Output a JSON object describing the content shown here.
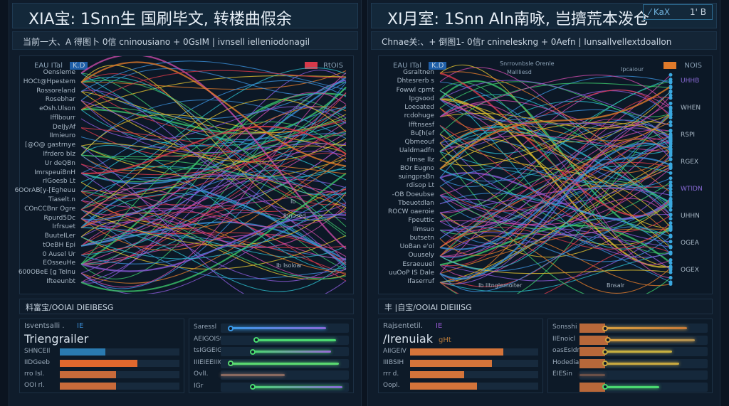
{
  "colors": {
    "curves": [
      "#3a8fd8",
      "#d8394a",
      "#3bc46a",
      "#e0c030",
      "#e07a2a",
      "#8a5ad8",
      "#2ab8c8",
      "#c84aa8"
    ]
  },
  "panels": [
    {
      "title": "XIA宝: 1Snn生 国刷毕文, 转楼曲假余",
      "subtitle": "当前一大、A 得图卜   0信 cninousiano + 0GsIM  | ivnsell ielleniodonagil",
      "chart": {
        "legend_left": "EAU ITal",
        "legend_tag": "K.D",
        "legend_right": "RtOIS",
        "labels": [
          "Oensleme",
          "HOCt@Hpestem",
          "Rossoreland",
          "Rosebhar",
          "eOsh.Ulson",
          "Ifflbourr",
          "DeIJyAf",
          "IImieuro",
          "[@O@ gastrnye",
          "Ifrdero bIz",
          "Ur deQBn",
          "ImrspeuiBnH",
          "rIGoesb Lt",
          "6OOrAB[y-[Egheuu",
          "Tiaselt.n",
          "COnCCBnr Ogre",
          "Rpurd5Dc",
          "Irfrsuet",
          "BuuteILer",
          "tOeBH Epi",
          "0 Ausel Ur",
          "EOsseuHe",
          "600OBeE [g TeInu",
          "Ifteeunbt"
        ],
        "annotations": [
          "Ib",
          "Ibnused",
          "Ib Isoloar"
        ]
      },
      "section": "料富宝/OOIAI DIEIBESG",
      "left_box": {
        "label": "Isventsalli .",
        "tag": "IE",
        "big": "Triengrailer",
        "rows": [
          {
            "label": "SHNCEIl",
            "value": 0.38,
            "color": "#2a7ab0"
          },
          {
            "label": "IIDGeeb",
            "value": 0.65,
            "color": "#e0682e"
          },
          {
            "label": "rro IsI.",
            "value": 0.47,
            "color": "#c86a3a"
          },
          {
            "label": "OOI rl.",
            "value": 0.47,
            "color": "#c86a3a"
          }
        ]
      },
      "right_box": {
        "rows": [
          {
            "label": "Saressl",
            "start": 0.08,
            "end": 0.82,
            "color": "#3a9ae8",
            "color2": "#8a6ad8"
          },
          {
            "label": "AEIGOISt",
            "start": 0.28,
            "end": 0.9,
            "color": "#4ad870",
            "color2": "#4ad870"
          },
          {
            "label": "tsIGGEIG",
            "start": 0.25,
            "end": 0.86,
            "color": "#4ad870",
            "color2": "#9a6ad8"
          },
          {
            "label": "IIIEIEEIIIG",
            "start": 0.08,
            "end": 0.92,
            "color": "#5ad870",
            "color2": "#5ad870"
          },
          {
            "label": "OvlI.",
            "start": 0.0,
            "end": 0.5,
            "color": "#8a6a60",
            "color2": "#8a6a60"
          },
          {
            "label": "IGr",
            "start": 0.25,
            "end": 0.95,
            "color": "#4ad870",
            "color2": "#8a6ad8"
          }
        ]
      }
    },
    {
      "title": "XI月室: 1Snn Aln南咏, 岂擠荒本泼仓",
      "badge": {
        "left": "⁄ KaX",
        "right": "1' B"
      },
      "subtitle": "Chnae关:、+ 倒图1-   0信r cnineleskng + 0Aefn  | Iunsallvellextdoallon",
      "chart": {
        "legend_left": "EAU ITal",
        "legend_tag": "K.D",
        "legend_right": "NOIS",
        "legend_mid": "Snrrovnbsle Orenle",
        "legend_mid2": "Mallliesd",
        "legend_mid3": "Ipcaiour",
        "labels": [
          "Gsraltnen",
          "Dhtesrerb s",
          "Fowwl cpmt",
          "Ipgsood",
          "Loeoated",
          "rcdohuge",
          "Ifftnsesf",
          "Bu[h(ef",
          "Qbmeouf",
          "Ualdmadfn",
          "rImse IIz",
          "BOr Eugno",
          "suingprsBn",
          "rdisop Lt",
          "-OB Doeubse",
          "Tbeuotdlan",
          "ROCW oaeroie",
          "Fpeuttic",
          "Ilmsuo",
          "butsetn",
          "UoBan e'ol",
          "Ouusely",
          "Esraeuuel",
          "uuOoP IS Dale",
          "Ifaserruf"
        ],
        "right_labels": [
          "UHHB",
          "WHEN",
          "RSPI",
          "RGEX",
          "WTIDN",
          "UHHN",
          "OGEA",
          "OGEX"
        ],
        "annotations": [
          "Ib lItnglemoiter",
          "Bnsalr"
        ]
      },
      "section": "丰 |自宝/OOIAI DIEIIISG",
      "left_box": {
        "label": "Rajsentetil.",
        "tag": "IE",
        "big": "/Irenuiak",
        "big_tag": "gHt",
        "rows": [
          {
            "label": "AIIGEIV",
            "value": 0.73,
            "color": "#d4743a"
          },
          {
            "label": "IIIBSIH",
            "value": 0.64,
            "color": "#d4743a"
          },
          {
            "label": "rrr d.",
            "value": 0.42,
            "color": "#d4743a"
          },
          {
            "label": "Oopl.",
            "value": 0.52,
            "color": "#d4743a"
          }
        ]
      },
      "right_box": {
        "rows": [
          {
            "label": "Sonsshi",
            "start": 0.2,
            "end": 0.84,
            "color": "#d8a040",
            "color2": "#c87a3a"
          },
          {
            "label": "IIEnoicl",
            "start": 0.22,
            "end": 0.9,
            "color": "#d8a040",
            "color2": "#b09050"
          },
          {
            "label": "oasEsIdr",
            "start": 0.2,
            "end": 0.72,
            "color": "#c8b040",
            "color2": "#c8b040"
          },
          {
            "label": "Hodedia",
            "start": 0.2,
            "end": 0.78,
            "color": "#c8a840",
            "color2": "#c8a840"
          },
          {
            "label": "EIESin",
            "start": 0.0,
            "end": 0.2,
            "color": "#6a5048",
            "color2": "#6a5048"
          },
          {
            "label": "",
            "start": 0.2,
            "end": 0.62,
            "color": "#4ad870",
            "color2": "#4ad870"
          }
        ]
      }
    }
  ]
}
